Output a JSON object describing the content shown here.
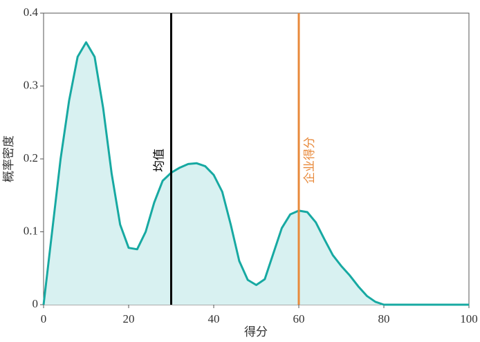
{
  "chart_data": {
    "type": "area",
    "x_label": "得分",
    "y_label": "概率密度",
    "x": [
      0,
      2,
      4,
      6,
      8,
      10,
      12,
      14,
      16,
      18,
      20,
      22,
      24,
      26,
      28,
      30,
      32,
      34,
      36,
      38,
      40,
      42,
      44,
      46,
      48,
      50,
      52,
      54,
      56,
      58,
      60,
      62,
      64,
      66,
      68,
      70,
      72,
      74,
      76,
      78,
      80,
      85,
      90,
      95,
      100
    ],
    "series": [
      {
        "color": "#17a9a2",
        "fill": "#d8f1f1",
        "values": [
          0,
          0.1,
          0.2,
          0.28,
          0.34,
          0.36,
          0.34,
          0.27,
          0.18,
          0.11,
          0.078,
          0.076,
          0.1,
          0.14,
          0.17,
          0.181,
          0.188,
          0.193,
          0.194,
          0.19,
          0.178,
          0.155,
          0.11,
          0.06,
          0.034,
          0.027,
          0.035,
          0.07,
          0.105,
          0.124,
          0.129,
          0.127,
          0.113,
          0.09,
          0.068,
          0.053,
          0.04,
          0.025,
          0.012,
          0.004,
          0,
          0,
          0,
          0,
          0
        ]
      }
    ],
    "reference_lines": [
      {
        "label": "均值",
        "value": 30,
        "color": "#000000"
      },
      {
        "label": "企业得分",
        "value": 60,
        "color": "#e8893a"
      }
    ],
    "xlim": [
      0,
      100
    ],
    "xticks": [
      0,
      20,
      40,
      60,
      80,
      100
    ],
    "ylim": [
      0,
      0.4
    ],
    "yticks": [
      0,
      0.1,
      0.2,
      0.3,
      0.4
    ]
  }
}
